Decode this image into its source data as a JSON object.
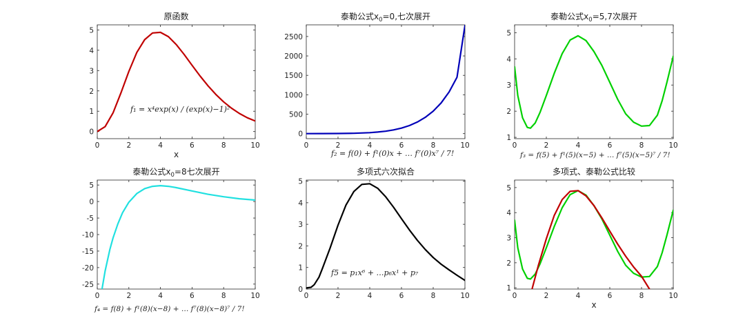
{
  "chart_data": [
    {
      "type": "line",
      "title": "原函数",
      "xlabel": "x",
      "formula": "f₁ = x⁴exp(x) / (exp(x)−1)²",
      "xlim": [
        0,
        10
      ],
      "ylim": [
        -0.35,
        5.25
      ],
      "xticks": [
        0,
        2,
        4,
        6,
        8,
        10
      ],
      "yticks": [
        0,
        1,
        2,
        3,
        4,
        5
      ],
      "series": [
        {
          "color": "#c00000",
          "x": [
            0,
            0.5,
            1,
            1.5,
            2,
            2.5,
            3,
            3.5,
            4,
            4.5,
            5,
            5.5,
            6,
            6.5,
            7,
            7.5,
            8,
            8.5,
            9,
            9.5,
            10
          ],
          "y": [
            0,
            0.24,
            0.92,
            1.9,
            2.96,
            3.89,
            4.52,
            4.85,
            4.88,
            4.67,
            4.28,
            3.79,
            3.26,
            2.74,
            2.26,
            1.83,
            1.46,
            1.15,
            0.89,
            0.68,
            0.52
          ]
        }
      ]
    },
    {
      "type": "line",
      "title": "泰勒公式x0=0,七次展开",
      "title_parts": [
        "泰勒公式x",
        "0",
        "=0,七次展开"
      ],
      "xlabel": "",
      "formula": "f₂ = f(0) + f¹(0)x + … f⁷(0)x⁷ / 7!",
      "xlim": [
        0,
        10
      ],
      "ylim": [
        -130,
        2800
      ],
      "xticks": [
        0,
        2,
        4,
        6,
        8,
        10
      ],
      "yticks": [
        0,
        500,
        1000,
        1500,
        2000,
        2500
      ],
      "series": [
        {
          "color": "#0000b8",
          "x": [
            0,
            1,
            2,
            3,
            4,
            4.5,
            5,
            5.5,
            6,
            6.5,
            7,
            7.5,
            8,
            8.5,
            9,
            9.5,
            10
          ],
          "y": [
            0,
            1,
            3,
            8,
            25,
            40,
            62,
            95,
            142,
            208,
            298,
            418,
            578,
            790,
            1070,
            1450,
            2780
          ]
        }
      ]
    },
    {
      "type": "line",
      "title": "泰勒公式x0=5,7次展开",
      "title_parts": [
        "泰勒公式x",
        "0",
        "=5,7次展开"
      ],
      "xlabel": "",
      "formula": "f₃ = f(5) + f¹(5)(x−5) + … f⁷(5)(x−5)⁷ / 7!",
      "xlim": [
        0,
        10
      ],
      "ylim": [
        0.95,
        5.3
      ],
      "xticks": [
        0,
        2,
        4,
        6,
        8,
        10
      ],
      "yticks": [
        1,
        2,
        3,
        4,
        5
      ],
      "series": [
        {
          "color": "#00d000",
          "x": [
            0,
            0.2,
            0.5,
            0.8,
            1,
            1.3,
            1.6,
            2,
            2.5,
            3,
            3.5,
            4,
            4.5,
            5,
            5.5,
            6,
            6.5,
            7,
            7.5,
            8,
            8.5,
            9,
            9.3,
            9.6,
            10
          ],
          "y": [
            3.7,
            2.6,
            1.75,
            1.38,
            1.35,
            1.55,
            1.95,
            2.6,
            3.45,
            4.2,
            4.72,
            4.88,
            4.7,
            4.28,
            3.75,
            3.1,
            2.45,
            1.9,
            1.58,
            1.43,
            1.45,
            1.85,
            2.4,
            3.1,
            4.1
          ]
        }
      ]
    },
    {
      "type": "line",
      "title": "泰勒公式x0=8七次展开",
      "title_parts": [
        "泰勒公式x",
        "0",
        "=8七次展开"
      ],
      "xlabel": "",
      "formula": "f₄ = f(8) + f¹(8)(x−8) + … f⁷(8)(x−8)⁷ / 7!",
      "xlim": [
        0,
        10
      ],
      "ylim": [
        -26.5,
        6.5
      ],
      "xticks": [
        0,
        2,
        4,
        6,
        8,
        10
      ],
      "yticks": [
        -25,
        -20,
        -15,
        -10,
        -5,
        0,
        5
      ],
      "series": [
        {
          "color": "#20e0e0",
          "x": [
            0.3,
            0.5,
            0.8,
            1,
            1.3,
            1.6,
            2,
            2.5,
            3,
            3.5,
            4,
            4.5,
            5,
            6,
            7,
            8,
            9,
            10
          ],
          "y": [
            -26.5,
            -21,
            -14.5,
            -11,
            -6.8,
            -3.4,
            -0.2,
            2.4,
            3.9,
            4.6,
            4.8,
            4.6,
            4.2,
            3.2,
            2.2,
            1.45,
            0.85,
            0.45
          ]
        }
      ]
    },
    {
      "type": "line",
      "title": "多项式六次拟合",
      "xlabel": "",
      "formula": "f5 = p₁x⁶ + …p₆x¹ + p₇",
      "xlim": [
        0,
        10
      ],
      "ylim": [
        0,
        5.05
      ],
      "xticks": [
        0,
        2,
        4,
        6,
        8,
        10
      ],
      "yticks": [
        0,
        1,
        2,
        3,
        4,
        5
      ],
      "series": [
        {
          "color": "#000000",
          "x": [
            0,
            0.3,
            0.5,
            0.8,
            1,
            1.5,
            2,
            2.5,
            3,
            3.5,
            4,
            4.5,
            5,
            5.5,
            6,
            6.5,
            7,
            7.5,
            8,
            8.5,
            9,
            9.5,
            10
          ],
          "y": [
            0.05,
            0.08,
            0.2,
            0.55,
            0.92,
            1.9,
            2.96,
            3.89,
            4.52,
            4.85,
            4.88,
            4.67,
            4.28,
            3.79,
            3.26,
            2.74,
            2.26,
            1.83,
            1.46,
            1.15,
            0.89,
            0.64,
            0.4
          ]
        }
      ]
    },
    {
      "type": "line",
      "title": "多项式、泰勒公式比较",
      "xlabel": "x",
      "formula": "",
      "xlim": [
        0,
        10
      ],
      "ylim": [
        0.95,
        5.3
      ],
      "xticks": [
        0,
        2,
        4,
        6,
        8,
        10
      ],
      "yticks": [
        1,
        2,
        3,
        4,
        5
      ],
      "series": [
        {
          "color": "#00d000",
          "x": [
            0,
            0.2,
            0.5,
            0.8,
            1,
            1.3,
            1.6,
            2,
            2.5,
            3,
            3.5,
            4,
            4.5,
            5,
            5.5,
            6,
            6.5,
            7,
            7.5,
            8,
            8.5,
            9,
            9.3,
            9.6,
            10
          ],
          "y": [
            3.7,
            2.6,
            1.75,
            1.38,
            1.35,
            1.55,
            1.95,
            2.6,
            3.45,
            4.2,
            4.72,
            4.88,
            4.7,
            4.28,
            3.75,
            3.1,
            2.45,
            1.9,
            1.58,
            1.43,
            1.45,
            1.85,
            2.4,
            3.1,
            4.1
          ]
        },
        {
          "color": "#c00000",
          "x": [
            1.1,
            1.5,
            2,
            2.5,
            3,
            3.5,
            4,
            4.5,
            5,
            5.5,
            6,
            6.5,
            7,
            7.5,
            8,
            8.5
          ],
          "y": [
            0.95,
            1.9,
            2.96,
            3.89,
            4.52,
            4.85,
            4.88,
            4.67,
            4.28,
            3.79,
            3.26,
            2.74,
            2.26,
            1.83,
            1.46,
            0.95
          ]
        }
      ]
    }
  ]
}
